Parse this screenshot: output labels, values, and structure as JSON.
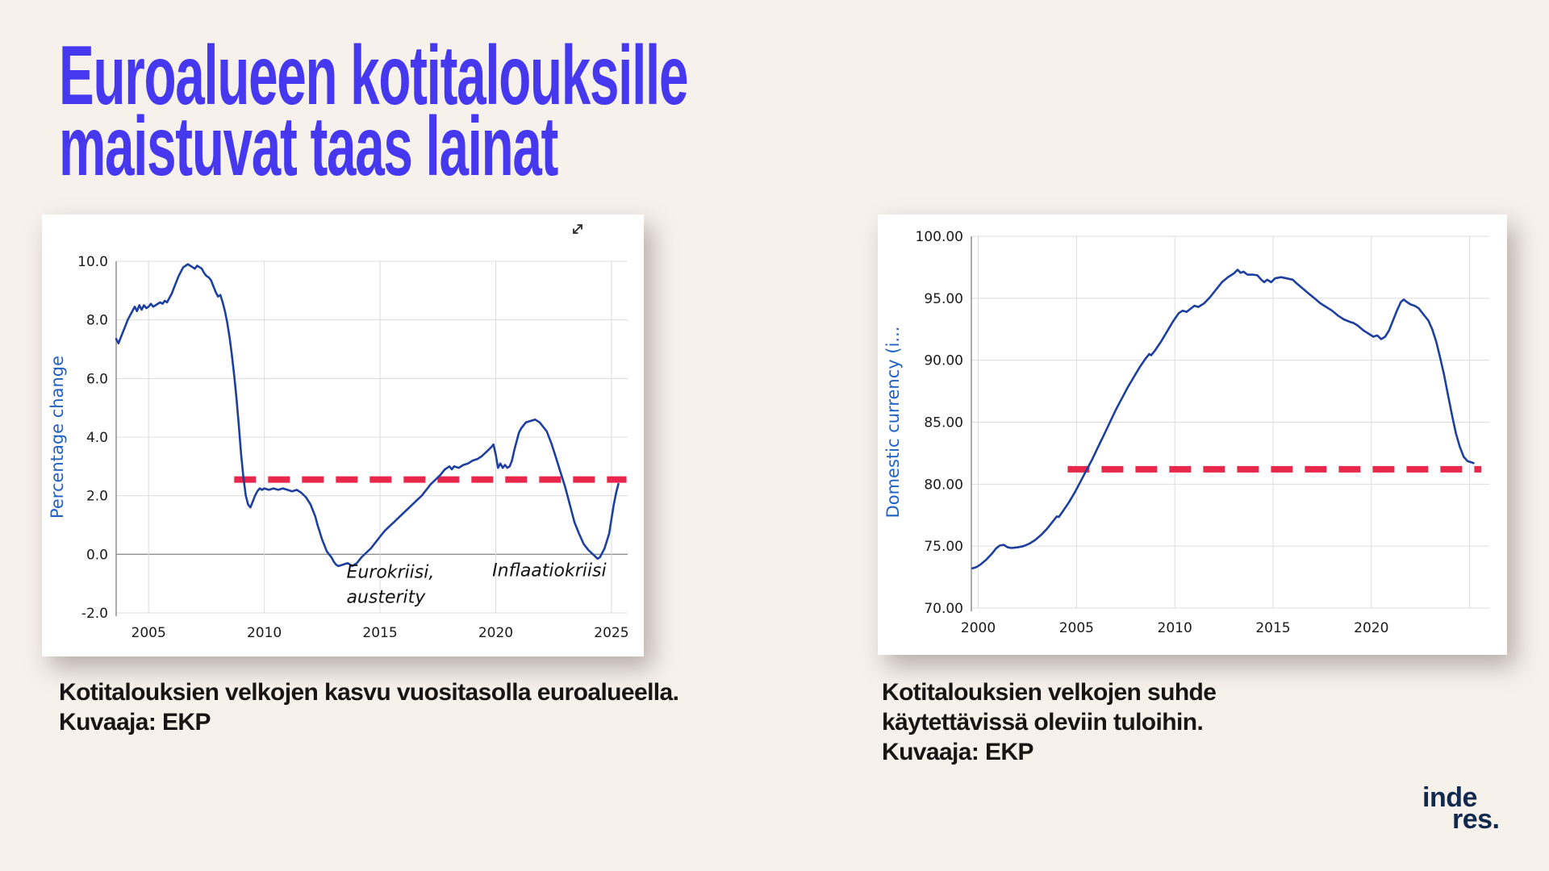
{
  "page": {
    "background": "#f7f1ec",
    "title": {
      "line1": "Euroalueen kotitalouksille",
      "line2": "maistuvat taas lainat",
      "color": "#4538ef"
    }
  },
  "captions": {
    "left": {
      "line1": "Kotitalouksien velkojen kasvu vuositasolla euroalueella.",
      "line2": "Kuvaaja: EKP"
    },
    "right": {
      "line1": "Kotitalouksien velkojen suhde",
      "line2": "käytettävissä oleviin tuloihin.",
      "line3": "Kuvaaja: EKP"
    }
  },
  "logo": {
    "line1": "inde",
    "line2": "res.",
    "color": "#13294d"
  },
  "chart_data": [
    {
      "type": "line",
      "title": "",
      "xlabel": "",
      "ylabel": "Percentage change",
      "xlim": [
        2003.6,
        2025.7
      ],
      "ylim": [
        -2,
        10
      ],
      "grid": true,
      "zero_line_dark": true,
      "line_color": "#1d3fa0",
      "yticks": [
        {
          "v": 10,
          "label": "10.0"
        },
        {
          "v": 8,
          "label": "8.0"
        },
        {
          "v": 6,
          "label": "6.0"
        },
        {
          "v": 4,
          "label": "4.0"
        },
        {
          "v": 2,
          "label": "2.0"
        },
        {
          "v": 0,
          "label": "0.0"
        },
        {
          "v": -2,
          "label": "-2.0"
        }
      ],
      "xticks": [
        {
          "v": 2005,
          "label": "2005"
        },
        {
          "v": 2010,
          "label": "2010"
        },
        {
          "v": 2015,
          "label": "2015"
        },
        {
          "v": 2020,
          "label": "2020"
        },
        {
          "v": 2025,
          "label": "2025"
        }
      ],
      "ref_line": {
        "value": 2.55,
        "x_start": 2008.7,
        "x_end": 2025.65,
        "color": "#e8274b",
        "style": "dashed"
      },
      "annotations": [
        {
          "x": 2013.55,
          "y": -0.8,
          "lines": [
            "Eurokriisi,",
            "austerity"
          ]
        },
        {
          "x": 2019.85,
          "y": -0.75,
          "lines": [
            "Inflaatiokriisi"
          ]
        }
      ],
      "series": [
        [
          2003.6,
          7.35
        ],
        [
          2003.7,
          7.2
        ],
        [
          2003.8,
          7.4
        ],
        [
          2003.9,
          7.6
        ],
        [
          2004.0,
          7.8
        ],
        [
          2004.1,
          8.0
        ],
        [
          2004.2,
          8.15
        ],
        [
          2004.3,
          8.3
        ],
        [
          2004.4,
          8.45
        ],
        [
          2004.5,
          8.3
        ],
        [
          2004.6,
          8.5
        ],
        [
          2004.7,
          8.35
        ],
        [
          2004.8,
          8.5
        ],
        [
          2004.9,
          8.4
        ],
        [
          2005.0,
          8.45
        ],
        [
          2005.1,
          8.55
        ],
        [
          2005.2,
          8.45
        ],
        [
          2005.3,
          8.5
        ],
        [
          2005.5,
          8.6
        ],
        [
          2005.6,
          8.55
        ],
        [
          2005.7,
          8.65
        ],
        [
          2005.8,
          8.6
        ],
        [
          2005.9,
          8.75
        ],
        [
          2006.0,
          8.9
        ],
        [
          2006.1,
          9.1
        ],
        [
          2006.2,
          9.3
        ],
        [
          2006.3,
          9.5
        ],
        [
          2006.4,
          9.65
        ],
        [
          2006.5,
          9.8
        ],
        [
          2006.6,
          9.85
        ],
        [
          2006.7,
          9.9
        ],
        [
          2006.8,
          9.85
        ],
        [
          2006.9,
          9.8
        ],
        [
          2007.0,
          9.75
        ],
        [
          2007.1,
          9.85
        ],
        [
          2007.2,
          9.8
        ],
        [
          2007.3,
          9.75
        ],
        [
          2007.4,
          9.6
        ],
        [
          2007.5,
          9.5
        ],
        [
          2007.6,
          9.45
        ],
        [
          2007.7,
          9.35
        ],
        [
          2007.8,
          9.15
        ],
        [
          2007.9,
          8.95
        ],
        [
          2008.0,
          8.8
        ],
        [
          2008.1,
          8.85
        ],
        [
          2008.2,
          8.6
        ],
        [
          2008.3,
          8.3
        ],
        [
          2008.4,
          7.9
        ],
        [
          2008.5,
          7.4
        ],
        [
          2008.6,
          6.8
        ],
        [
          2008.7,
          6.1
        ],
        [
          2008.8,
          5.3
        ],
        [
          2008.9,
          4.4
        ],
        [
          2009.0,
          3.4
        ],
        [
          2009.1,
          2.6
        ],
        [
          2009.2,
          2.0
        ],
        [
          2009.3,
          1.7
        ],
        [
          2009.4,
          1.6
        ],
        [
          2009.5,
          1.8
        ],
        [
          2009.6,
          2.0
        ],
        [
          2009.7,
          2.15
        ],
        [
          2009.8,
          2.25
        ],
        [
          2009.9,
          2.2
        ],
        [
          2010.0,
          2.25
        ],
        [
          2010.2,
          2.2
        ],
        [
          2010.4,
          2.25
        ],
        [
          2010.6,
          2.2
        ],
        [
          2010.8,
          2.25
        ],
        [
          2011.0,
          2.2
        ],
        [
          2011.2,
          2.15
        ],
        [
          2011.4,
          2.2
        ],
        [
          2011.6,
          2.1
        ],
        [
          2011.8,
          1.95
        ],
        [
          2012.0,
          1.7
        ],
        [
          2012.1,
          1.5
        ],
        [
          2012.2,
          1.3
        ],
        [
          2012.3,
          1.0
        ],
        [
          2012.4,
          0.75
        ],
        [
          2012.5,
          0.5
        ],
        [
          2012.6,
          0.3
        ],
        [
          2012.7,
          0.1
        ],
        [
          2012.8,
          0.0
        ],
        [
          2012.9,
          -0.1
        ],
        [
          2013.0,
          -0.25
        ],
        [
          2013.1,
          -0.35
        ],
        [
          2013.2,
          -0.4
        ],
        [
          2013.4,
          -0.35
        ],
        [
          2013.6,
          -0.3
        ],
        [
          2013.8,
          -0.4
        ],
        [
          2014.0,
          -0.3
        ],
        [
          2014.2,
          -0.1
        ],
        [
          2014.4,
          0.05
        ],
        [
          2014.6,
          0.2
        ],
        [
          2014.8,
          0.4
        ],
        [
          2015.0,
          0.6
        ],
        [
          2015.2,
          0.8
        ],
        [
          2015.4,
          0.95
        ],
        [
          2015.6,
          1.1
        ],
        [
          2015.8,
          1.25
        ],
        [
          2016.0,
          1.4
        ],
        [
          2016.2,
          1.55
        ],
        [
          2016.4,
          1.7
        ],
        [
          2016.6,
          1.85
        ],
        [
          2016.8,
          2.0
        ],
        [
          2017.0,
          2.2
        ],
        [
          2017.2,
          2.4
        ],
        [
          2017.4,
          2.55
        ],
        [
          2017.6,
          2.7
        ],
        [
          2017.8,
          2.9
        ],
        [
          2018.0,
          3.0
        ],
        [
          2018.1,
          2.9
        ],
        [
          2018.2,
          3.0
        ],
        [
          2018.4,
          2.95
        ],
        [
          2018.6,
          3.05
        ],
        [
          2018.8,
          3.1
        ],
        [
          2019.0,
          3.2
        ],
        [
          2019.2,
          3.25
        ],
        [
          2019.4,
          3.35
        ],
        [
          2019.6,
          3.5
        ],
        [
          2019.8,
          3.65
        ],
        [
          2019.9,
          3.75
        ],
        [
          2020.0,
          3.4
        ],
        [
          2020.1,
          2.95
        ],
        [
          2020.2,
          3.1
        ],
        [
          2020.3,
          2.95
        ],
        [
          2020.4,
          3.05
        ],
        [
          2020.5,
          2.95
        ],
        [
          2020.6,
          3.0
        ],
        [
          2020.7,
          3.2
        ],
        [
          2020.8,
          3.55
        ],
        [
          2020.9,
          3.85
        ],
        [
          2021.0,
          4.15
        ],
        [
          2021.1,
          4.3
        ],
        [
          2021.2,
          4.4
        ],
        [
          2021.3,
          4.5
        ],
        [
          2021.5,
          4.55
        ],
        [
          2021.7,
          4.6
        ],
        [
          2021.9,
          4.5
        ],
        [
          2022.0,
          4.4
        ],
        [
          2022.2,
          4.2
        ],
        [
          2022.4,
          3.8
        ],
        [
          2022.6,
          3.3
        ],
        [
          2022.8,
          2.8
        ],
        [
          2023.0,
          2.3
        ],
        [
          2023.2,
          1.7
        ],
        [
          2023.4,
          1.1
        ],
        [
          2023.6,
          0.7
        ],
        [
          2023.8,
          0.35
        ],
        [
          2024.0,
          0.15
        ],
        [
          2024.2,
          0.0
        ],
        [
          2024.4,
          -0.15
        ],
        [
          2024.5,
          -0.1
        ],
        [
          2024.7,
          0.2
        ],
        [
          2024.9,
          0.7
        ],
        [
          2025.0,
          1.2
        ],
        [
          2025.1,
          1.7
        ],
        [
          2025.2,
          2.1
        ],
        [
          2025.3,
          2.4
        ]
      ]
    },
    {
      "type": "line",
      "title": "",
      "xlabel": "",
      "ylabel": "Domestic currency (i...",
      "xlim": [
        1999.65,
        2026.0
      ],
      "ylim": [
        70,
        100
      ],
      "grid": true,
      "zero_line_dark": false,
      "line_color": "#1d3fa0",
      "yticks": [
        {
          "v": 100,
          "label": "100.00"
        },
        {
          "v": 95,
          "label": "95.00"
        },
        {
          "v": 90,
          "label": "90.00"
        },
        {
          "v": 85,
          "label": "85.00"
        },
        {
          "v": 80,
          "label": "80.00"
        },
        {
          "v": 75,
          "label": "75.00"
        },
        {
          "v": 70,
          "label": "70.00"
        }
      ],
      "xticks": [
        {
          "v": 2000,
          "label": "2000"
        },
        {
          "v": 2005,
          "label": "2005"
        },
        {
          "v": 2010,
          "label": "2010"
        },
        {
          "v": 2015,
          "label": "2015"
        },
        {
          "v": 2020,
          "label": "2020"
        },
        {
          "v": 2025,
          "label": ""
        }
      ],
      "ref_line": {
        "value": 81.2,
        "x_start": 2004.55,
        "x_end": 2025.6,
        "color": "#e8274b",
        "style": "dashed"
      },
      "annotations": [],
      "series": [
        [
          1999.7,
          73.2
        ],
        [
          1999.9,
          73.3
        ],
        [
          2000.1,
          73.5
        ],
        [
          2000.4,
          73.9
        ],
        [
          2000.7,
          74.4
        ],
        [
          2000.9,
          74.8
        ],
        [
          2001.1,
          75.05
        ],
        [
          2001.3,
          75.1
        ],
        [
          2001.5,
          74.9
        ],
        [
          2001.7,
          74.85
        ],
        [
          2002.0,
          74.9
        ],
        [
          2002.3,
          75.0
        ],
        [
          2002.6,
          75.2
        ],
        [
          2002.9,
          75.5
        ],
        [
          2003.2,
          75.9
        ],
        [
          2003.5,
          76.4
        ],
        [
          2003.8,
          77.0
        ],
        [
          2004.0,
          77.4
        ],
        [
          2004.1,
          77.35
        ],
        [
          2004.3,
          77.8
        ],
        [
          2004.6,
          78.5
        ],
        [
          2004.9,
          79.3
        ],
        [
          2005.2,
          80.2
        ],
        [
          2005.5,
          81.1
        ],
        [
          2005.8,
          82.0
        ],
        [
          2006.1,
          83.0
        ],
        [
          2006.4,
          84.0
        ],
        [
          2006.7,
          85.0
        ],
        [
          2007.0,
          86.0
        ],
        [
          2007.3,
          86.9
        ],
        [
          2007.6,
          87.8
        ],
        [
          2007.9,
          88.6
        ],
        [
          2008.2,
          89.4
        ],
        [
          2008.5,
          90.1
        ],
        [
          2008.7,
          90.5
        ],
        [
          2008.8,
          90.4
        ],
        [
          2009.0,
          90.8
        ],
        [
          2009.3,
          91.5
        ],
        [
          2009.6,
          92.3
        ],
        [
          2009.9,
          93.1
        ],
        [
          2010.2,
          93.8
        ],
        [
          2010.4,
          94.0
        ],
        [
          2010.6,
          93.9
        ],
        [
          2010.8,
          94.15
        ],
        [
          2011.0,
          94.4
        ],
        [
          2011.2,
          94.3
        ],
        [
          2011.5,
          94.6
        ],
        [
          2011.8,
          95.1
        ],
        [
          2012.1,
          95.7
        ],
        [
          2012.4,
          96.3
        ],
        [
          2012.7,
          96.7
        ],
        [
          2013.0,
          97.0
        ],
        [
          2013.2,
          97.3
        ],
        [
          2013.35,
          97.05
        ],
        [
          2013.5,
          97.15
        ],
        [
          2013.7,
          96.9
        ],
        [
          2014.0,
          96.9
        ],
        [
          2014.2,
          96.85
        ],
        [
          2014.4,
          96.5
        ],
        [
          2014.55,
          96.3
        ],
        [
          2014.7,
          96.5
        ],
        [
          2014.9,
          96.3
        ],
        [
          2015.1,
          96.6
        ],
        [
          2015.4,
          96.7
        ],
        [
          2015.7,
          96.6
        ],
        [
          2016.0,
          96.5
        ],
        [
          2016.2,
          96.2
        ],
        [
          2016.5,
          95.8
        ],
        [
          2016.8,
          95.4
        ],
        [
          2017.1,
          95.0
        ],
        [
          2017.4,
          94.6
        ],
        [
          2017.7,
          94.3
        ],
        [
          2018.0,
          94.0
        ],
        [
          2018.3,
          93.6
        ],
        [
          2018.6,
          93.3
        ],
        [
          2018.9,
          93.1
        ],
        [
          2019.1,
          93.0
        ],
        [
          2019.3,
          92.8
        ],
        [
          2019.6,
          92.4
        ],
        [
          2019.9,
          92.1
        ],
        [
          2020.1,
          91.9
        ],
        [
          2020.3,
          92.0
        ],
        [
          2020.5,
          91.7
        ],
        [
          2020.7,
          91.9
        ],
        [
          2020.9,
          92.4
        ],
        [
          2021.1,
          93.2
        ],
        [
          2021.3,
          94.0
        ],
        [
          2021.5,
          94.7
        ],
        [
          2021.65,
          94.9
        ],
        [
          2021.8,
          94.7
        ],
        [
          2022.0,
          94.5
        ],
        [
          2022.2,
          94.4
        ],
        [
          2022.4,
          94.2
        ],
        [
          2022.6,
          93.8
        ],
        [
          2022.9,
          93.2
        ],
        [
          2023.1,
          92.5
        ],
        [
          2023.3,
          91.5
        ],
        [
          2023.5,
          90.2
        ],
        [
          2023.7,
          88.8
        ],
        [
          2023.9,
          87.2
        ],
        [
          2024.1,
          85.6
        ],
        [
          2024.3,
          84.1
        ],
        [
          2024.5,
          83.0
        ],
        [
          2024.7,
          82.2
        ],
        [
          2024.9,
          81.85
        ],
        [
          2025.1,
          81.75
        ],
        [
          2025.2,
          81.7
        ]
      ]
    }
  ]
}
